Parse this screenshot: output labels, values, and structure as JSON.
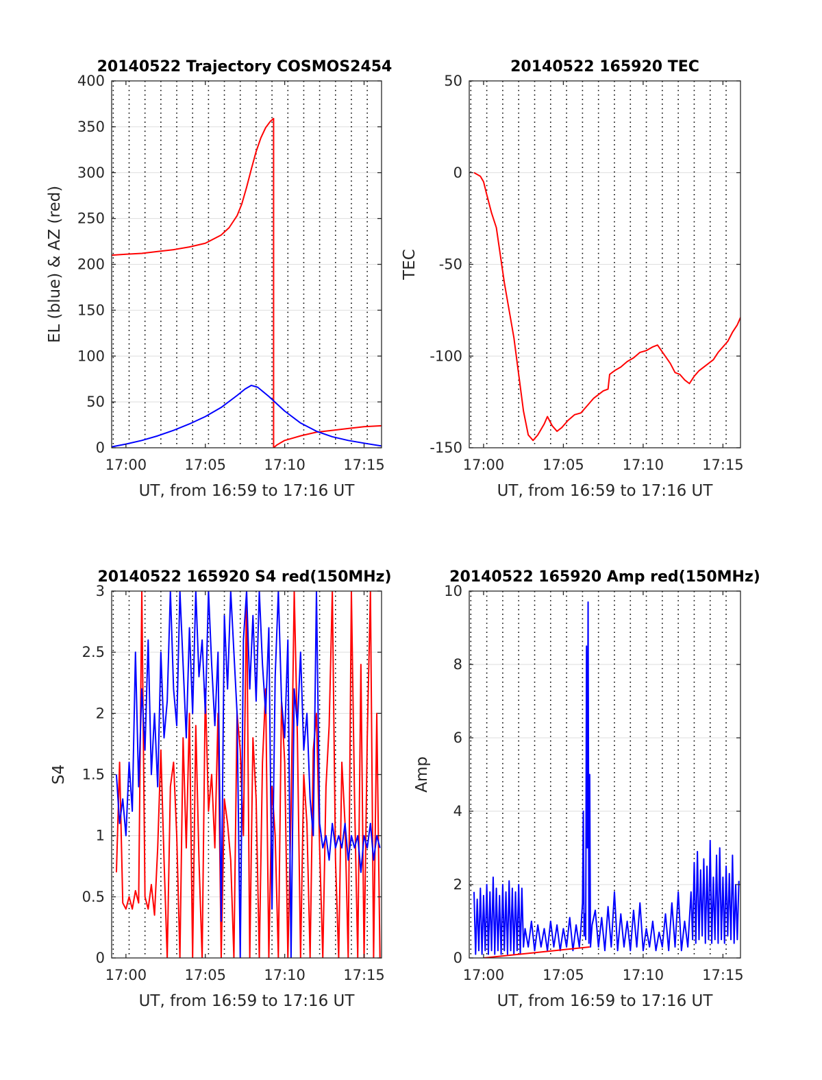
{
  "chart_data": [
    {
      "id": "trajectory",
      "type": "line",
      "title": "20140522 Trajectory COSMOS2454",
      "xlabel": "UT, from 16:59 to 17:16 UT",
      "ylabel": "EL (blue) & AZ (red)",
      "xlim": [
        -0.9,
        16.1
      ],
      "ylim": [
        0,
        400
      ],
      "x_unit": "minutes after 17:00 UT",
      "yticks": [
        0,
        50,
        100,
        150,
        200,
        250,
        300,
        350,
        400
      ],
      "ytick_labels": [
        "0",
        "50",
        "100",
        "150",
        "200",
        "250",
        "300",
        "350",
        "400"
      ],
      "xticks": [
        0,
        5,
        10,
        15
      ],
      "xtick_labels": [
        "17:00",
        "17:05",
        "17:10",
        "17:15"
      ],
      "vertical_dotted_lines": [
        -0.8,
        0.2,
        1.2,
        2.2,
        3.2,
        4.2,
        5.2,
        6.2,
        7.2,
        8.2,
        9.2,
        10.2,
        11.2,
        12.2,
        13.2,
        14.2,
        15.2
      ],
      "grid": "horizontal",
      "series": [
        {
          "name": "AZ",
          "color": "#ff0000",
          "x": [
            -0.9,
            0,
            1,
            2,
            3,
            4,
            5,
            6,
            6.5,
            7,
            7.3,
            7.6,
            7.9,
            8.2,
            8.5,
            8.8,
            9.1,
            9.3,
            9.3,
            9.5,
            10,
            11,
            12,
            13,
            14,
            15,
            16.1
          ],
          "y": [
            210,
            211,
            212,
            214,
            216,
            219,
            223,
            232,
            240,
            253,
            266,
            284,
            304,
            323,
            338,
            349,
            356,
            359,
            0,
            3,
            8,
            13,
            17,
            19,
            21,
            23,
            24
          ]
        },
        {
          "name": "EL",
          "color": "#0000ff",
          "x": [
            -0.9,
            0,
            1,
            2,
            3,
            4,
            5,
            6,
            7,
            7.5,
            7.9,
            8.3,
            9,
            10,
            11,
            12,
            13,
            14,
            15,
            16.1
          ],
          "y": [
            1,
            4,
            8,
            13,
            19,
            26,
            34,
            44,
            57,
            64,
            68,
            66,
            56,
            40,
            27,
            18,
            12,
            8,
            5,
            2
          ]
        }
      ]
    },
    {
      "id": "tec",
      "type": "line",
      "title": "20140522 165920 TEC",
      "xlabel": "UT, from 16:59 to 17:16 UT",
      "ylabel": "TEC",
      "xlim": [
        -0.9,
        16.1
      ],
      "ylim": [
        -150,
        50
      ],
      "x_unit": "minutes after 17:00 UT",
      "yticks": [
        -150,
        -100,
        -50,
        0,
        50
      ],
      "ytick_labels": [
        "-150",
        "-100",
        "-50",
        "0",
        "50"
      ],
      "xticks": [
        0,
        5,
        10,
        15
      ],
      "xtick_labels": [
        "17:00",
        "17:05",
        "17:10",
        "17:15"
      ],
      "vertical_dotted_lines": [
        -0.8,
        0.2,
        1.2,
        2.2,
        3.2,
        4.2,
        5.2,
        6.2,
        7.2,
        8.2,
        9.2,
        10.2,
        11.2,
        12.2,
        13.2,
        14.2,
        15.2
      ],
      "grid": "horizontal",
      "series": [
        {
          "name": "TEC",
          "color": "#ff0000",
          "x": [
            -0.6,
            -0.4,
            -0.2,
            0,
            0.2,
            0.5,
            0.8,
            1.0,
            1.3,
            1.6,
            1.9,
            2.2,
            2.5,
            2.8,
            3.1,
            3.4,
            3.6,
            3.8,
            4.0,
            4.3,
            4.6,
            4.9,
            5.3,
            5.7,
            6.1,
            6.5,
            6.9,
            7.2,
            7.5,
            7.8,
            7.9,
            8.2,
            8.6,
            9.0,
            9.4,
            9.8,
            10.2,
            10.6,
            10.9,
            11.3,
            11.7,
            12.0,
            12.3,
            12.6,
            12.9,
            13.2,
            13.5,
            13.8,
            14.1,
            14.4,
            14.7,
            15.0,
            15.3,
            15.6,
            15.9,
            16.1
          ],
          "y": [
            0,
            -1,
            -2,
            -5,
            -12,
            -22,
            -30,
            -42,
            -60,
            -75,
            -90,
            -110,
            -130,
            -143,
            -146,
            -143,
            -140,
            -137,
            -133,
            -138,
            -141,
            -139,
            -135,
            -132,
            -131,
            -127,
            -123,
            -121,
            -119,
            -118,
            -110,
            -108,
            -106,
            -103,
            -101,
            -98,
            -97,
            -95,
            -94,
            -99,
            -104,
            -109,
            -110,
            -113,
            -115,
            -111,
            -108,
            -106,
            -104,
            -102,
            -98,
            -95,
            -92,
            -87,
            -83,
            -79
          ]
        }
      ]
    },
    {
      "id": "s4",
      "type": "line",
      "title": "20140522 165920 S4 red(150MHz)",
      "xlabel": "UT, from 16:59 to 17:16 UT",
      "ylabel": "S4",
      "xlim": [
        -0.9,
        16.1
      ],
      "ylim": [
        0,
        3
      ],
      "x_unit": "minutes after 17:00 UT",
      "yticks": [
        0,
        0.5,
        1,
        1.5,
        2,
        2.5,
        3
      ],
      "ytick_labels": [
        "0",
        "0.5",
        "1",
        "1.5",
        "2",
        "2.5",
        "3"
      ],
      "xticks": [
        0,
        5,
        10,
        15
      ],
      "xtick_labels": [
        "17:00",
        "17:05",
        "17:10",
        "17:15"
      ],
      "vertical_dotted_lines": [
        -0.8,
        0.2,
        1.2,
        2.2,
        3.2,
        4.2,
        5.2,
        6.2,
        7.2,
        8.2,
        9.2,
        10.2,
        11.2,
        12.2,
        13.2,
        14.2,
        15.2
      ],
      "grid": "horizontal",
      "series": [
        {
          "name": "red (150MHz)",
          "color": "#ff0000",
          "x": [
            -0.6,
            -0.4,
            -0.2,
            0.0,
            0.2,
            0.4,
            0.6,
            0.8,
            1.0,
            1.2,
            1.4,
            1.6,
            1.8,
            2.0,
            2.2,
            2.4,
            2.6,
            2.8,
            3.0,
            3.2,
            3.4,
            3.6,
            3.8,
            4.0,
            4.2,
            4.4,
            4.6,
            4.8,
            5.0,
            5.2,
            5.4,
            5.6,
            5.8,
            6.0,
            6.2,
            6.4,
            6.6,
            6.8,
            7.0,
            7.2,
            7.4,
            7.6,
            7.8,
            8.0,
            8.2,
            8.4,
            8.6,
            8.8,
            9.0,
            9.2,
            9.4,
            9.6,
            9.8,
            10.0,
            10.2,
            10.4,
            10.6,
            10.8,
            11.0,
            11.2,
            11.4,
            11.6,
            11.8,
            12.0,
            12.2,
            12.4,
            12.6,
            12.8,
            13.0,
            13.2,
            13.4,
            13.6,
            13.8,
            14.0,
            14.2,
            14.4,
            14.6,
            14.8,
            15.0,
            15.2,
            15.4,
            15.6,
            15.8,
            16.0
          ],
          "y": [
            0.7,
            1.6,
            0.45,
            0.4,
            0.5,
            0.4,
            0.55,
            0.45,
            3.0,
            0.5,
            0.4,
            0.6,
            0.35,
            0.9,
            1.7,
            0.8,
            0.0,
            1.4,
            1.6,
            1.0,
            0.0,
            1.8,
            0.9,
            2.0,
            0.0,
            1.9,
            0.8,
            0.0,
            2.2,
            1.2,
            1.5,
            0.9,
            2.0,
            0.0,
            1.3,
            1.1,
            0.8,
            0.0,
            2.0,
            1.7,
            1.0,
            3.0,
            0.0,
            1.8,
            1.3,
            0.0,
            1.6,
            2.2,
            0.0,
            1.4,
            1.0,
            0.0,
            2.1,
            1.6,
            0.0,
            1.2,
            3.0,
            1.8,
            0.0,
            1.5,
            1.1,
            0.0,
            1.7,
            2.0,
            0.9,
            0.0,
            1.4,
            1.9,
            3.0,
            0.8,
            0.0,
            1.6,
            1.1,
            0.0,
            3.0,
            1.3,
            0.0,
            2.4,
            0.0,
            1.8,
            3.0,
            0.0,
            2.0,
            0.0
          ]
        },
        {
          "name": "blue",
          "color": "#0000ff",
          "x": [
            -0.6,
            -0.4,
            -0.2,
            0.0,
            0.2,
            0.4,
            0.6,
            0.8,
            1.0,
            1.2,
            1.4,
            1.6,
            1.8,
            2.0,
            2.2,
            2.4,
            2.6,
            2.8,
            3.0,
            3.2,
            3.4,
            3.6,
            3.8,
            4.0,
            4.2,
            4.4,
            4.6,
            4.8,
            5.0,
            5.2,
            5.4,
            5.6,
            5.8,
            6.0,
            6.2,
            6.4,
            6.6,
            6.8,
            7.0,
            7.2,
            7.4,
            7.6,
            7.8,
            8.0,
            8.2,
            8.4,
            8.6,
            8.8,
            9.0,
            9.2,
            9.4,
            9.6,
            9.8,
            10.0,
            10.2,
            10.4,
            10.6,
            10.8,
            11.0,
            11.2,
            11.4,
            11.6,
            11.8,
            12.0,
            12.2,
            12.4,
            12.6,
            12.8,
            13.0,
            13.2,
            13.4,
            13.6,
            13.8,
            14.0,
            14.2,
            14.4,
            14.6,
            14.8,
            15.0,
            15.2,
            15.4,
            15.6,
            15.8,
            16.0
          ],
          "y": [
            1.5,
            1.1,
            1.3,
            1.0,
            1.6,
            1.2,
            2.5,
            1.4,
            2.2,
            1.7,
            2.6,
            1.5,
            2.0,
            1.4,
            2.5,
            1.8,
            2.1,
            3.0,
            2.2,
            1.9,
            3.0,
            2.4,
            1.8,
            2.7,
            2.0,
            3.0,
            2.3,
            2.6,
            2.0,
            3.0,
            2.4,
            1.9,
            2.5,
            0.3,
            2.8,
            2.2,
            3.0,
            2.5,
            2.0,
            0.0,
            2.6,
            3.0,
            2.2,
            2.8,
            2.1,
            3.0,
            2.4,
            2.0,
            2.7,
            0.4,
            2.3,
            3.0,
            2.1,
            1.8,
            2.6,
            0.0,
            2.2,
            1.9,
            2.5,
            1.7,
            2.0,
            1.3,
            1.0,
            3.0,
            1.1,
            0.9,
            1.0,
            0.8,
            1.1,
            0.9,
            1.0,
            0.9,
            1.1,
            0.8,
            1.0,
            0.9,
            1.0,
            0.7,
            1.0,
            0.9,
            1.1,
            0.8,
            1.0,
            0.9
          ]
        }
      ]
    },
    {
      "id": "amp",
      "type": "line",
      "title": "20140522 165920 Amp red(150MHz)",
      "xlabel": "UT, from 16:59 to 17:16 UT",
      "ylabel": "Amp",
      "xlim": [
        -0.9,
        16.1
      ],
      "ylim": [
        0,
        10
      ],
      "x_unit": "minutes after 17:00 UT",
      "yticks": [
        0,
        2,
        4,
        6,
        8,
        10
      ],
      "ytick_labels": [
        "0",
        "2",
        "4",
        "6",
        "8",
        "10"
      ],
      "xticks": [
        0,
        5,
        10,
        15
      ],
      "xtick_labels": [
        "17:00",
        "17:05",
        "17:10",
        "17:15"
      ],
      "vertical_dotted_lines": [
        -0.8,
        0.2,
        1.2,
        2.2,
        3.2,
        4.2,
        5.2,
        6.2,
        7.2,
        8.2,
        9.2,
        10.2,
        11.2,
        12.2,
        13.2,
        14.2,
        15.2
      ],
      "grid": "horizontal",
      "series": [
        {
          "name": "blue",
          "color": "#0000ff",
          "x": [
            -0.6,
            -0.5,
            -0.4,
            -0.3,
            -0.2,
            -0.1,
            0.0,
            0.1,
            0.2,
            0.3,
            0.4,
            0.5,
            0.6,
            0.7,
            0.8,
            0.9,
            1.0,
            1.1,
            1.2,
            1.3,
            1.4,
            1.5,
            1.6,
            1.7,
            1.8,
            1.9,
            2.0,
            2.1,
            2.2,
            2.3,
            2.4,
            2.5,
            2.6,
            2.8,
            3.0,
            3.2,
            3.4,
            3.6,
            3.8,
            4.0,
            4.2,
            4.4,
            4.6,
            4.8,
            5.0,
            5.2,
            5.4,
            5.6,
            5.8,
            6.0,
            6.1,
            6.2,
            6.25,
            6.3,
            6.35,
            6.4,
            6.45,
            6.5,
            6.55,
            6.6,
            6.65,
            6.7,
            6.8,
            7.0,
            7.2,
            7.4,
            7.6,
            7.8,
            8.0,
            8.2,
            8.4,
            8.6,
            8.8,
            9.0,
            9.2,
            9.4,
            9.6,
            9.8,
            10.0,
            10.2,
            10.4,
            10.6,
            10.8,
            11.0,
            11.2,
            11.4,
            11.6,
            11.8,
            12.0,
            12.2,
            12.4,
            12.6,
            12.8,
            13.0,
            13.1,
            13.2,
            13.3,
            13.4,
            13.5,
            13.6,
            13.7,
            13.8,
            13.9,
            14.0,
            14.1,
            14.2,
            14.3,
            14.4,
            14.5,
            14.6,
            14.7,
            14.8,
            14.9,
            15.0,
            15.1,
            15.2,
            15.3,
            15.4,
            15.5,
            15.6,
            15.7,
            15.8,
            15.9,
            16.0
          ],
          "y": [
            1.8,
            0.1,
            1.6,
            0.2,
            1.9,
            0.1,
            1.7,
            0.2,
            2.0,
            0.1,
            1.8,
            0.2,
            2.2,
            0.1,
            1.9,
            0.2,
            1.7,
            0.1,
            2.0,
            0.2,
            1.8,
            0.1,
            2.1,
            0.2,
            1.9,
            0.1,
            1.8,
            0.2,
            2.0,
            0.1,
            1.9,
            0.3,
            0.8,
            0.3,
            1.0,
            0.2,
            0.9,
            0.3,
            0.8,
            0.2,
            1.0,
            0.3,
            0.9,
            0.2,
            0.8,
            0.3,
            1.1,
            0.2,
            0.9,
            0.3,
            0.8,
            1.5,
            4.0,
            0.6,
            1.2,
            0.5,
            8.5,
            3.0,
            9.7,
            0.4,
            5.0,
            0.3,
            0.9,
            1.3,
            0.3,
            1.1,
            0.2,
            1.4,
            0.3,
            1.8,
            0.2,
            1.2,
            0.3,
            1.0,
            0.2,
            1.3,
            0.3,
            1.5,
            0.2,
            0.8,
            0.3,
            1.0,
            0.2,
            0.7,
            0.3,
            1.2,
            0.2,
            1.5,
            0.3,
            1.8,
            0.2,
            1.0,
            0.3,
            1.8,
            0.5,
            2.6,
            0.4,
            2.9,
            0.5,
            2.4,
            0.6,
            2.7,
            0.4,
            2.5,
            0.5,
            3.2,
            0.4,
            2.2,
            0.5,
            2.8,
            0.4,
            3.0,
            0.5,
            2.2,
            0.4,
            2.5,
            0.6,
            2.3,
            0.5,
            2.8,
            0.4,
            2.0,
            0.5,
            2.1
          ]
        },
        {
          "name": "red (150MHz)",
          "color": "#ff0000",
          "x": [
            0.0,
            6.65
          ],
          "y": [
            0.0,
            0.3
          ]
        }
      ]
    }
  ]
}
